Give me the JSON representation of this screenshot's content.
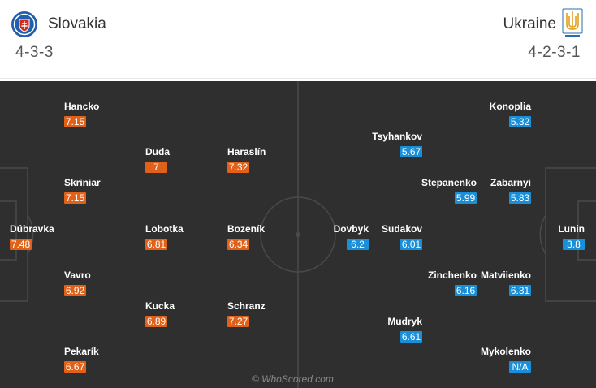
{
  "home": {
    "name": "Slovakia",
    "formation": "4-3-3",
    "crest_icon": "slovakia-crest-icon",
    "color": "#e06119",
    "players": [
      {
        "name": "Hancko",
        "rating": "7.15"
      },
      {
        "name": "Duda",
        "rating": "7"
      },
      {
        "name": "Haraslín",
        "rating": "7.32"
      },
      {
        "name": "Skriniar",
        "rating": "7.15"
      },
      {
        "name": "Dúbravka",
        "rating": "7.48"
      },
      {
        "name": "Lobotka",
        "rating": "6.81"
      },
      {
        "name": "Bozeník",
        "rating": "6.34"
      },
      {
        "name": "Vavro",
        "rating": "6.92"
      },
      {
        "name": "Kucka",
        "rating": "6.89"
      },
      {
        "name": "Schranz",
        "rating": "7.27"
      },
      {
        "name": "Pekarík",
        "rating": "6.67"
      }
    ]
  },
  "away": {
    "name": "Ukraine",
    "formation": "4-2-3-1",
    "crest_icon": "ukraine-crest-icon",
    "color": "#1a8fd9",
    "players": [
      {
        "name": "Konoplia",
        "rating": "5.32"
      },
      {
        "name": "Tsyhankov",
        "rating": "5.67"
      },
      {
        "name": "Stepanenko",
        "rating": "5.99"
      },
      {
        "name": "Zabarnyi",
        "rating": "5.83"
      },
      {
        "name": "Dovbyk",
        "rating": "6.2"
      },
      {
        "name": "Sudakov",
        "rating": "6.01"
      },
      {
        "name": "Lunin",
        "rating": "3.8"
      },
      {
        "name": "Zinchenko",
        "rating": "6.16"
      },
      {
        "name": "Matviienko",
        "rating": "6.31"
      },
      {
        "name": "Mudryk",
        "rating": "6.61"
      },
      {
        "name": "Mykolenko",
        "rating": "N/A"
      }
    ]
  },
  "watermark": "© WhoScored.com"
}
